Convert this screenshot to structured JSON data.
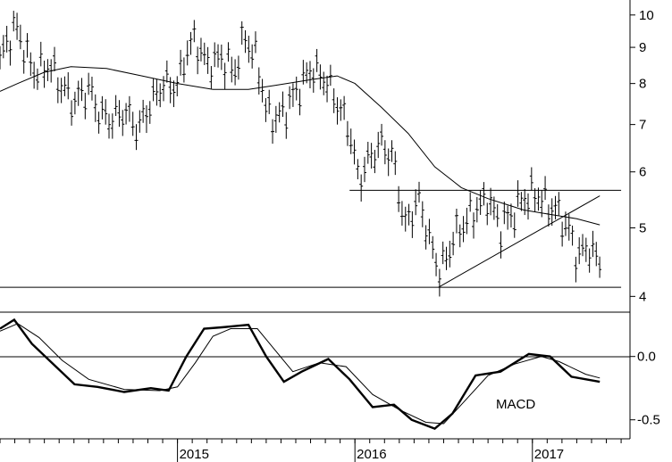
{
  "chart_data": [
    {
      "type": "ohlc",
      "scale": "log",
      "ylim": [
        3.8,
        10.5
      ],
      "y_ticks": [
        "10",
        "9",
        "8",
        "7",
        "6",
        "5",
        "4"
      ],
      "y_tick_values": [
        10,
        9,
        8,
        7,
        6,
        5,
        4
      ],
      "grid": false,
      "moving_average": [
        {
          "x": 2014.0,
          "y": 7.8
        },
        {
          "x": 2014.1,
          "y": 8.0
        },
        {
          "x": 2014.25,
          "y": 8.3
        },
        {
          "x": 2014.4,
          "y": 8.45
        },
        {
          "x": 2014.6,
          "y": 8.4
        },
        {
          "x": 2014.8,
          "y": 8.2
        },
        {
          "x": 2015.0,
          "y": 8.0
        },
        {
          "x": 2015.2,
          "y": 7.85
        },
        {
          "x": 2015.4,
          "y": 7.85
        },
        {
          "x": 2015.55,
          "y": 7.95
        },
        {
          "x": 2015.75,
          "y": 8.1
        },
        {
          "x": 2015.9,
          "y": 8.2
        },
        {
          "x": 2016.0,
          "y": 8.0
        },
        {
          "x": 2016.15,
          "y": 7.4
        },
        {
          "x": 2016.3,
          "y": 6.8
        },
        {
          "x": 2016.45,
          "y": 6.1
        },
        {
          "x": 2016.6,
          "y": 5.7
        },
        {
          "x": 2016.75,
          "y": 5.5
        },
        {
          "x": 2016.85,
          "y": 5.4
        },
        {
          "x": 2016.95,
          "y": 5.3
        },
        {
          "x": 2017.05,
          "y": 5.25
        },
        {
          "x": 2017.15,
          "y": 5.2
        },
        {
          "x": 2017.25,
          "y": 5.15
        },
        {
          "x": 2017.38,
          "y": 5.05
        }
      ],
      "price_path": [
        {
          "x": 2014.0,
          "y": 8.6
        },
        {
          "x": 2014.05,
          "y": 9.3
        },
        {
          "x": 2014.1,
          "y": 9.6
        },
        {
          "x": 2014.15,
          "y": 8.7
        },
        {
          "x": 2014.2,
          "y": 8.3
        },
        {
          "x": 2014.28,
          "y": 8.5
        },
        {
          "x": 2014.35,
          "y": 7.9
        },
        {
          "x": 2014.42,
          "y": 7.5
        },
        {
          "x": 2014.5,
          "y": 7.9
        },
        {
          "x": 2014.55,
          "y": 7.3
        },
        {
          "x": 2014.62,
          "y": 7.1
        },
        {
          "x": 2014.7,
          "y": 7.3
        },
        {
          "x": 2014.78,
          "y": 6.9
        },
        {
          "x": 2014.85,
          "y": 7.5
        },
        {
          "x": 2014.92,
          "y": 8.0
        },
        {
          "x": 2015.0,
          "y": 7.9
        },
        {
          "x": 2015.05,
          "y": 8.9
        },
        {
          "x": 2015.1,
          "y": 9.2
        },
        {
          "x": 2015.17,
          "y": 8.5
        },
        {
          "x": 2015.25,
          "y": 8.7
        },
        {
          "x": 2015.32,
          "y": 8.3
        },
        {
          "x": 2015.38,
          "y": 9.3
        },
        {
          "x": 2015.45,
          "y": 8.6
        },
        {
          "x": 2015.5,
          "y": 7.3
        },
        {
          "x": 2015.55,
          "y": 7.1
        },
        {
          "x": 2015.62,
          "y": 7.4
        },
        {
          "x": 2015.7,
          "y": 8.0
        },
        {
          "x": 2015.76,
          "y": 8.4
        },
        {
          "x": 2015.85,
          "y": 8.0
        },
        {
          "x": 2015.92,
          "y": 7.3
        },
        {
          "x": 2015.97,
          "y": 6.9
        },
        {
          "x": 2016.02,
          "y": 5.8
        },
        {
          "x": 2016.07,
          "y": 6.2
        },
        {
          "x": 2016.15,
          "y": 6.6
        },
        {
          "x": 2016.22,
          "y": 6.2
        },
        {
          "x": 2016.28,
          "y": 5.0
        },
        {
          "x": 2016.36,
          "y": 5.5
        },
        {
          "x": 2016.42,
          "y": 4.8
        },
        {
          "x": 2016.48,
          "y": 4.3
        },
        {
          "x": 2016.55,
          "y": 4.8
        },
        {
          "x": 2016.62,
          "y": 5.1
        },
        {
          "x": 2016.68,
          "y": 5.3
        },
        {
          "x": 2016.75,
          "y": 5.5
        },
        {
          "x": 2016.82,
          "y": 5.0
        },
        {
          "x": 2016.88,
          "y": 5.2
        },
        {
          "x": 2016.95,
          "y": 5.5
        },
        {
          "x": 2017.02,
          "y": 5.6
        },
        {
          "x": 2017.08,
          "y": 5.4
        },
        {
          "x": 2017.13,
          "y": 5.3
        },
        {
          "x": 2017.2,
          "y": 5.0
        },
        {
          "x": 2017.25,
          "y": 4.55
        },
        {
          "x": 2017.32,
          "y": 4.7
        },
        {
          "x": 2017.38,
          "y": 4.45
        }
      ],
      "horizontal_lines": [
        {
          "x_start": 2015.97,
          "x_end": 2017.5,
          "y": 5.65
        },
        {
          "x_start": 2014.0,
          "x_end": 2017.5,
          "y": 4.12
        }
      ],
      "trendlines": [
        {
          "x1": 2016.47,
          "y1": 4.12,
          "x2": 2017.38,
          "y2": 5.55
        }
      ]
    },
    {
      "type": "line",
      "annotation": "MACD",
      "ylim": [
        -0.65,
        0.35
      ],
      "y_ticks": [
        "0.0",
        "-0.5"
      ],
      "y_tick_values": [
        0.0,
        -0.5
      ],
      "zero_line": true,
      "series": [
        {
          "values": [
            {
              "x": 2014.0,
              "y": 0.22
            },
            {
              "x": 2014.08,
              "y": 0.29
            },
            {
              "x": 2014.18,
              "y": 0.1
            },
            {
              "x": 2014.3,
              "y": -0.06
            },
            {
              "x": 2014.42,
              "y": -0.22
            },
            {
              "x": 2014.55,
              "y": -0.24
            },
            {
              "x": 2014.7,
              "y": -0.28
            },
            {
              "x": 2014.85,
              "y": -0.25
            },
            {
              "x": 2014.95,
              "y": -0.27
            },
            {
              "x": 2015.05,
              "y": 0.0
            },
            {
              "x": 2015.15,
              "y": 0.22
            },
            {
              "x": 2015.25,
              "y": 0.23
            },
            {
              "x": 2015.4,
              "y": 0.25
            },
            {
              "x": 2015.5,
              "y": 0.0
            },
            {
              "x": 2015.6,
              "y": -0.2
            },
            {
              "x": 2015.7,
              "y": -0.12
            },
            {
              "x": 2015.85,
              "y": -0.02
            },
            {
              "x": 2015.97,
              "y": -0.18
            },
            {
              "x": 2016.1,
              "y": -0.4
            },
            {
              "x": 2016.22,
              "y": -0.38
            },
            {
              "x": 2016.32,
              "y": -0.5
            },
            {
              "x": 2016.45,
              "y": -0.57
            },
            {
              "x": 2016.55,
              "y": -0.45
            },
            {
              "x": 2016.68,
              "y": -0.15
            },
            {
              "x": 2016.82,
              "y": -0.12
            },
            {
              "x": 2016.98,
              "y": 0.02
            },
            {
              "x": 2017.1,
              "y": 0.0
            },
            {
              "x": 2017.22,
              "y": -0.16
            },
            {
              "x": 2017.38,
              "y": -0.2
            }
          ]
        },
        {
          "values": [
            {
              "x": 2014.0,
              "y": 0.2
            },
            {
              "x": 2014.1,
              "y": 0.26
            },
            {
              "x": 2014.22,
              "y": 0.15
            },
            {
              "x": 2014.35,
              "y": -0.03
            },
            {
              "x": 2014.5,
              "y": -0.18
            },
            {
              "x": 2014.7,
              "y": -0.26
            },
            {
              "x": 2014.9,
              "y": -0.27
            },
            {
              "x": 2015.0,
              "y": -0.24
            },
            {
              "x": 2015.1,
              "y": -0.05
            },
            {
              "x": 2015.2,
              "y": 0.16
            },
            {
              "x": 2015.3,
              "y": 0.22
            },
            {
              "x": 2015.45,
              "y": 0.22
            },
            {
              "x": 2015.55,
              "y": 0.05
            },
            {
              "x": 2015.65,
              "y": -0.12
            },
            {
              "x": 2015.8,
              "y": -0.05
            },
            {
              "x": 2015.95,
              "y": -0.08
            },
            {
              "x": 2016.1,
              "y": -0.3
            },
            {
              "x": 2016.25,
              "y": -0.42
            },
            {
              "x": 2016.4,
              "y": -0.52
            },
            {
              "x": 2016.5,
              "y": -0.53
            },
            {
              "x": 2016.6,
              "y": -0.38
            },
            {
              "x": 2016.75,
              "y": -0.15
            },
            {
              "x": 2016.9,
              "y": -0.06
            },
            {
              "x": 2017.05,
              "y": 0.0
            },
            {
              "x": 2017.15,
              "y": -0.04
            },
            {
              "x": 2017.3,
              "y": -0.14
            },
            {
              "x": 2017.38,
              "y": -0.17
            }
          ]
        }
      ]
    }
  ],
  "x_axis": {
    "ticks": [
      "2015",
      "2016",
      "2017"
    ],
    "tick_values": [
      2015,
      2016,
      2017
    ],
    "xlim": [
      2014.0,
      2017.55
    ]
  }
}
